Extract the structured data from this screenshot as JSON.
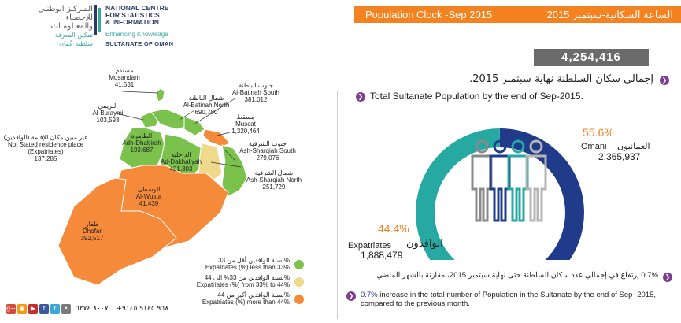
{
  "header": {
    "logo_ar_line1": "المـركـز الوطنـي",
    "logo_ar_line2": "للإحصـاء",
    "logo_ar_line3": "والمعـلومـات",
    "logo_ar_tag": "تمكين المعرفة",
    "logo_ar_country": "سلطنة عُمان",
    "logo_en_line1": "NATIONAL CENTRE",
    "logo_en_line2": "FOR STATISTICS",
    "logo_en_line3": "& INFORMATION",
    "logo_en_tag": "Enhancing Knowledge",
    "logo_en_country": "SULTANATE OF OMAN",
    "banner_en": "Population Clock -Sep 2015",
    "banner_ar": "الساعة السكانية-سبتمبر 2015"
  },
  "total": {
    "value": "4,254,416",
    "title_ar": "إجمالي سكان السلطنة نهاية سبتمبر 2015.",
    "title_en": "Total Sultanate Population by the end of Sep-2015."
  },
  "donut": {
    "omani_pct": "55.6%",
    "omani_en": "Omani",
    "omani_ar": "العمانيون",
    "omani_value": "2,365,937",
    "expat_pct": "44.4%",
    "expat_en": "Expatriates",
    "expat_ar": "الوافدون",
    "expat_value": "1,888,479",
    "omani_fraction": 0.556,
    "colors": {
      "omani": "#1f3b8a",
      "expat": "#27a9a3"
    }
  },
  "increase": {
    "ar": "0.7% إرتفاع في إجمالي عدد سكان السلطنة حتى نهاية سبتمبر 2015، مقارنة بالشهر الماضي.",
    "en_pct": "0.7%",
    "en": "increase in the total number of Population in the Sultanate by the end of Sep- 2015, compared to the previous month."
  },
  "regions": {
    "musandam": {
      "ar": "مسندم",
      "en": "Musandam",
      "value": "41,531"
    },
    "batinah_north": {
      "ar": "شمال الباطنة",
      "en": "Al-Batinah North",
      "value": "690,780"
    },
    "batinah_south": {
      "ar": "جنوب الباطنة",
      "en": "Al-Batinah South",
      "value": "381,012"
    },
    "buraymi": {
      "ar": "البريمي",
      "en": "Al-Buraymi",
      "value": "103,593"
    },
    "muscat": {
      "ar": "مسقط",
      "en": "Muscat",
      "value": "1,320,464"
    },
    "dhahirah": {
      "ar": "الظاهرة",
      "en": "Adh-Dhahirah",
      "value": "193,687"
    },
    "sharqiah_south": {
      "ar": "جنوب الشرقية",
      "en": "Ash-Sharqiah South",
      "value": "279,076"
    },
    "dakhiliyah": {
      "ar": "الداخلية",
      "en": "Ad-Dakhaliyah",
      "value": "421,303"
    },
    "sharqiah_north": {
      "ar": "شمال الشرقية",
      "en": "Ash-Sharqiah North",
      "value": "251,729"
    },
    "wusta": {
      "ar": "الوسطى",
      "en": "Al-Wusta",
      "value": "41,439"
    },
    "dhofar": {
      "ar": "ظفار",
      "en": "Dhofar",
      "value": "392,517"
    },
    "not_stated": {
      "ar": "غير مبين مكان الإقامة (الوافدين)",
      "en": "Not Stated residence place",
      "en2": "(Expatriates)",
      "value": "137,285"
    }
  },
  "legend": [
    {
      "ar": "نسبة الوافدين أقل من 33%",
      "en": "Expatriates (%) less than 33%",
      "color": "#7bc24d"
    },
    {
      "ar": "نسبة الوافدين من 33% الى 44%",
      "en": "Expatriates (%) from 33% to 44%",
      "color": "#efd98a"
    },
    {
      "ar": "نسبة الوافدين أكبر من 44%",
      "en": "Expatriates (%) more than 44%",
      "color": "#f58a3a"
    }
  ],
  "footer": {
    "phone1": "٨٠٠٧ ٦٢٧٤",
    "phone2": "+٩٦٨ ٩١٤٥ ٩١٤٥",
    "social_icons": [
      "googleplus-icon",
      "rss-icon",
      "youtube-icon",
      "facebook-icon",
      "twitter-icon",
      "flickr-icon"
    ]
  }
}
